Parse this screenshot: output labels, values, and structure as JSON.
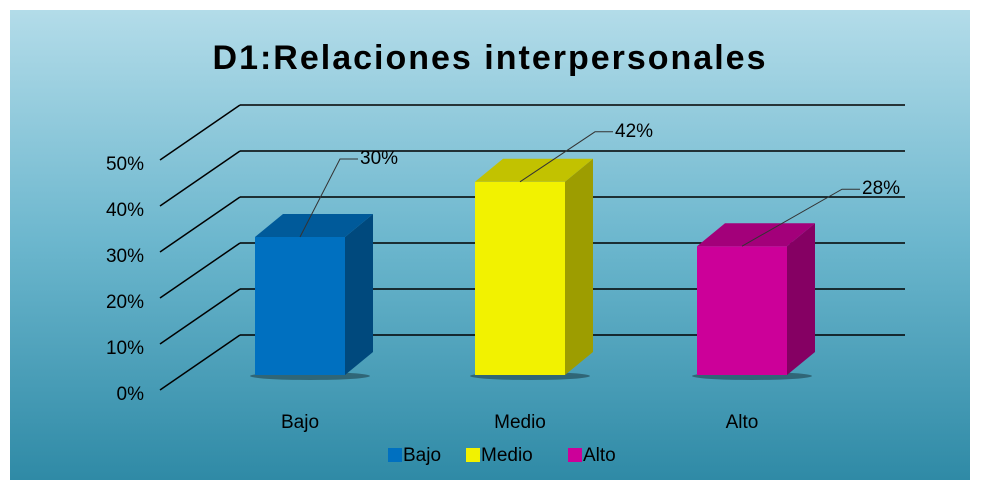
{
  "chart_data": {
    "type": "bar3d",
    "title": "D1:Relaciones interpersonales",
    "categories": [
      "Bajo",
      "Medio",
      "Alto"
    ],
    "values": [
      30,
      42,
      28
    ],
    "value_labels": [
      "30%",
      "42%",
      "28%"
    ],
    "colors": [
      "#0070c0",
      "#f2f200",
      "#cc0099"
    ],
    "ylim": [
      0,
      50
    ],
    "yticks": [
      {
        "value": 0,
        "label": "0%"
      },
      {
        "value": 10,
        "label": "10%"
      },
      {
        "value": 20,
        "label": "20%"
      },
      {
        "value": 30,
        "label": "30%"
      },
      {
        "value": 40,
        "label": "40%"
      },
      {
        "value": 50,
        "label": "50%"
      }
    ],
    "grid": true,
    "legend": "bottom"
  }
}
